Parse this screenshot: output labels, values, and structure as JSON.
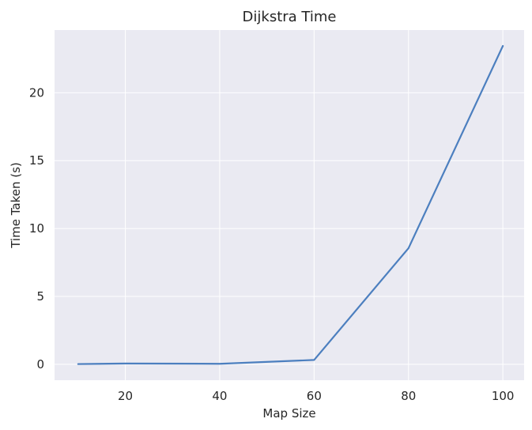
{
  "chart_data": {
    "type": "line",
    "title": "Dijkstra Time",
    "xlabel": "Map Size",
    "ylabel": "Time Taken (s)",
    "x": [
      10,
      20,
      40,
      60,
      80,
      100
    ],
    "series": [
      {
        "values": [
          0.02,
          0.06,
          0.04,
          0.32,
          8.55,
          23.45
        ],
        "color": "#4c7fbf"
      }
    ],
    "xlim": [
      5,
      104.5
    ],
    "ylim": [
      -1.17,
      24.62
    ],
    "xticks": [
      20,
      40,
      60,
      80,
      100
    ],
    "yticks": [
      0,
      5,
      10,
      15,
      20
    ],
    "grid": true,
    "style": {
      "plot_background": "#eaeaf2",
      "grid_color": "#ffffff",
      "text_color": "#262626"
    }
  }
}
